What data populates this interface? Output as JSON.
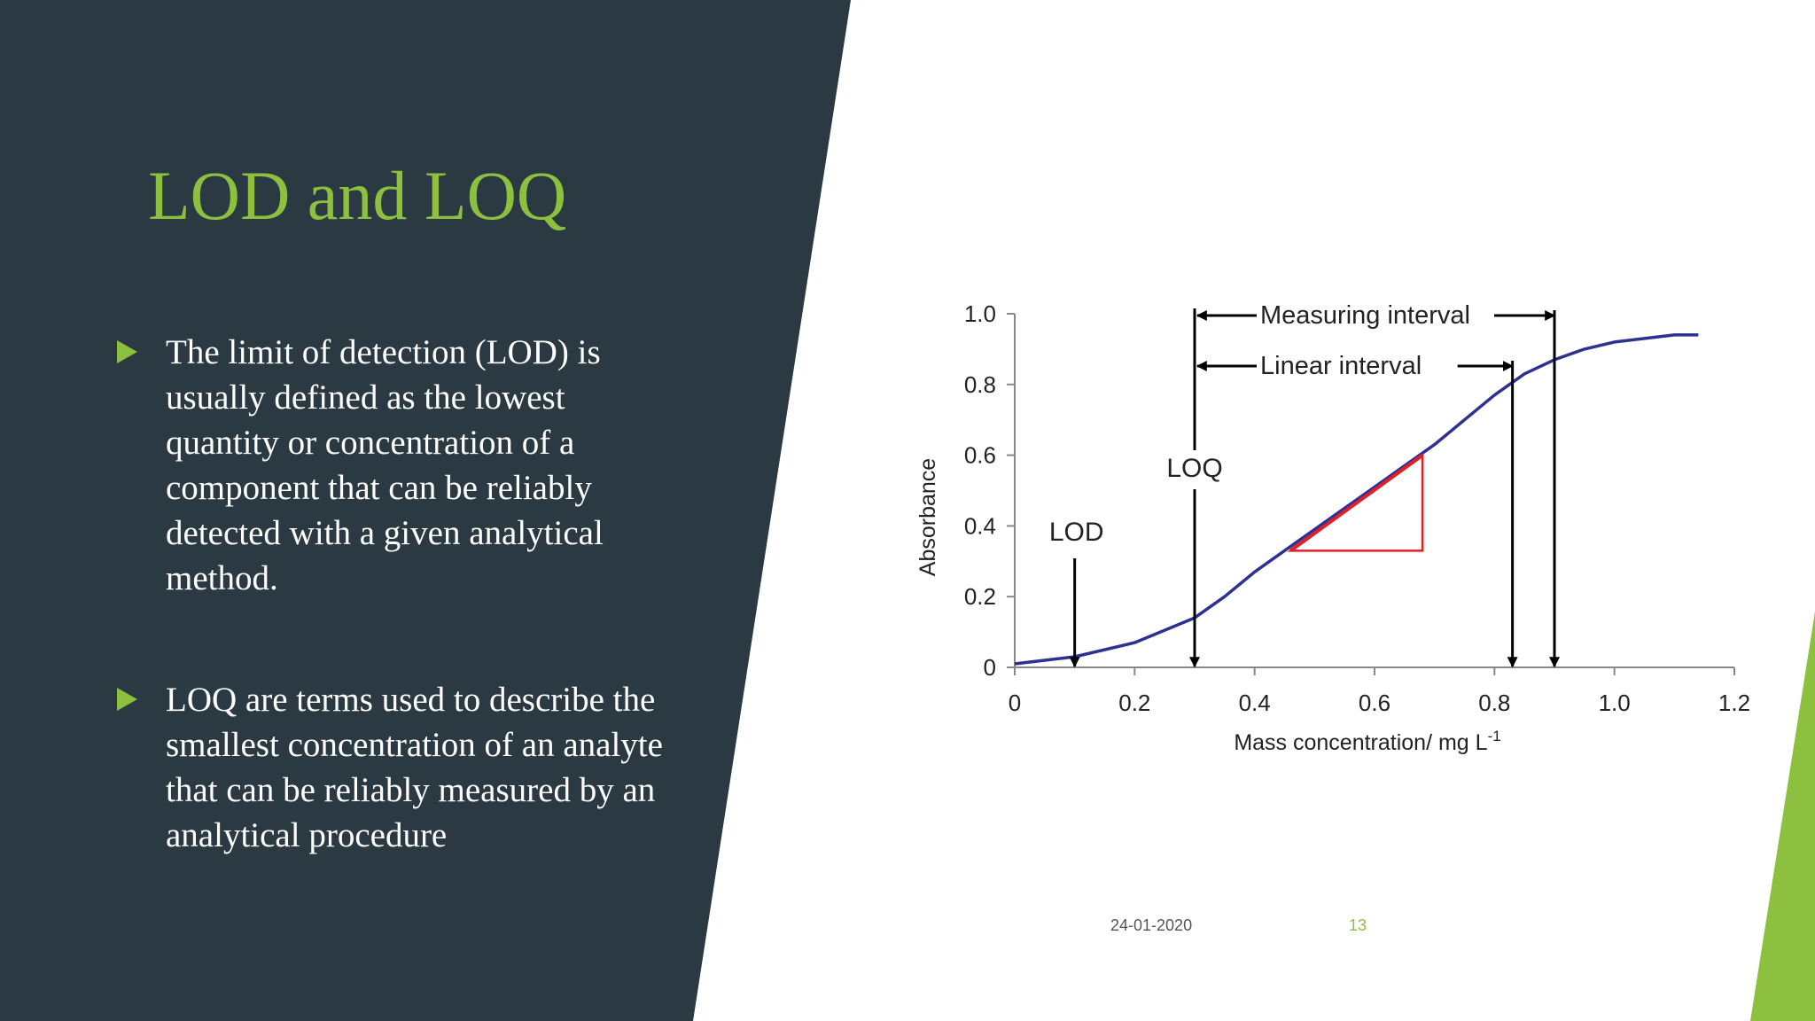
{
  "slide": {
    "title": "LOD and LOQ",
    "bullets": [
      "The limit of detection (LOD) is usually defined as the lowest quantity or concentration of a component that can be reliably detected with a given analytical method.",
      "LOQ are terms used to describe the smallest concentration of an analyte that can be reliably measured by an analytical procedure"
    ],
    "footer": {
      "date": "24-01-2020",
      "page": "13"
    },
    "colors": {
      "panel": "#2b3a42",
      "accent": "#8dc03f",
      "curve": "#2e3192",
      "slope": "#e31e24"
    }
  },
  "chart_data": {
    "type": "line",
    "title": "",
    "xlabel": "Mass concentration/ mg L",
    "xlabel_sup": "-1",
    "ylabel": "Absorbance",
    "xlim": [
      0,
      1.2
    ],
    "ylim": [
      0,
      1.0
    ],
    "x_ticks": [
      "0",
      "0.2",
      "0.4",
      "0.6",
      "0.8",
      "1.0",
      "1.2"
    ],
    "y_ticks": [
      "0",
      "0.2",
      "0.4",
      "0.6",
      "0.8",
      "1.0"
    ],
    "grid": false,
    "series": [
      {
        "x": [
          0.0,
          0.1,
          0.2,
          0.3,
          0.35,
          0.4,
          0.45,
          0.5,
          0.55,
          0.6,
          0.65,
          0.7,
          0.75,
          0.8,
          0.85,
          0.9,
          0.95,
          1.0,
          1.05,
          1.1,
          1.14
        ],
        "y": [
          0.01,
          0.03,
          0.07,
          0.14,
          0.2,
          0.27,
          0.33,
          0.39,
          0.45,
          0.51,
          0.57,
          0.63,
          0.7,
          0.77,
          0.83,
          0.87,
          0.9,
          0.92,
          0.93,
          0.94,
          0.94
        ]
      }
    ],
    "slope_triangle": {
      "x": [
        0.46,
        0.68
      ],
      "y": [
        0.33,
        0.6
      ]
    },
    "annotations": {
      "lod": {
        "label": "LOD",
        "x": 0.1
      },
      "loq": {
        "label": "LOQ",
        "x": 0.3
      },
      "linear_interval": {
        "label": "Linear interval",
        "x": [
          0.3,
          0.83
        ]
      },
      "measuring_interval": {
        "label": "Measuring interval",
        "x": [
          0.3,
          0.9
        ]
      }
    }
  }
}
